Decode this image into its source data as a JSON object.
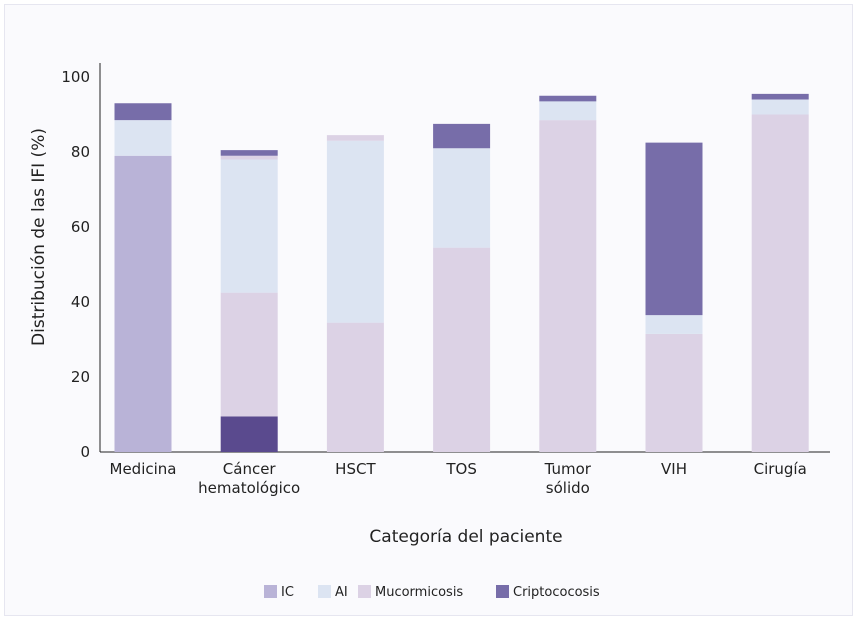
{
  "chart_data": {
    "type": "bar",
    "stacked": true,
    "categories": [
      [
        "Medicina"
      ],
      [
        "Cáncer",
        "hematológico"
      ],
      [
        "HSCT"
      ],
      [
        "TOS"
      ],
      [
        "Tumor",
        "sólido"
      ],
      [
        "VIH"
      ],
      [
        "Cirugía"
      ]
    ],
    "series": [
      {
        "name": "IC",
        "color": "#b9b3d7"
      },
      {
        "name": "AI",
        "color": "#dce4f2"
      },
      {
        "name": "Mucormicosis",
        "color": "#dcd2e5"
      },
      {
        "name": "Criptococosis",
        "color": "#776da9"
      }
    ],
    "stacks": [
      [
        {
          "series": "IC",
          "value": 79
        },
        {
          "series": "AI",
          "value": 9.5
        },
        {
          "series": "Criptococosis",
          "value": 4.5
        }
      ],
      [
        {
          "series": "Criptococosis",
          "value": 9.5,
          "color": "#5a4a8e"
        },
        {
          "series": "Mucormicosis",
          "value": 33
        },
        {
          "series": "AI",
          "value": 35.5
        },
        {
          "series": "Mucormicosis",
          "value": 1
        },
        {
          "series": "Criptococosis",
          "value": 1.5
        }
      ],
      [
        {
          "series": "Mucormicosis",
          "value": 34.5
        },
        {
          "series": "AI",
          "value": 48.5
        },
        {
          "series": "Mucormicosis",
          "value": 1.5
        }
      ],
      [
        {
          "series": "Mucormicosis",
          "value": 54.5
        },
        {
          "series": "AI",
          "value": 26.5
        },
        {
          "series": "Criptococosis",
          "value": 6.5
        }
      ],
      [
        {
          "series": "Mucormicosis",
          "value": 88.5
        },
        {
          "series": "AI",
          "value": 5
        },
        {
          "series": "Criptococosis",
          "value": 1.5
        }
      ],
      [
        {
          "series": "Mucormicosis",
          "value": 31.5
        },
        {
          "series": "AI",
          "value": 5
        },
        {
          "series": "Criptococosis",
          "value": 46
        }
      ],
      [
        {
          "series": "Mucormicosis",
          "value": 90
        },
        {
          "series": "AI",
          "value": 4
        },
        {
          "series": "Criptococosis",
          "value": 1.5
        }
      ]
    ],
    "title": "",
    "xlabel": "Categoría del paciente",
    "ylabel": "Distribución de las IFI (%)",
    "ylim": [
      0,
      100
    ],
    "yticks": [
      0,
      20,
      40,
      60,
      80,
      100
    ],
    "grid": false,
    "legend_position": "bottom"
  }
}
